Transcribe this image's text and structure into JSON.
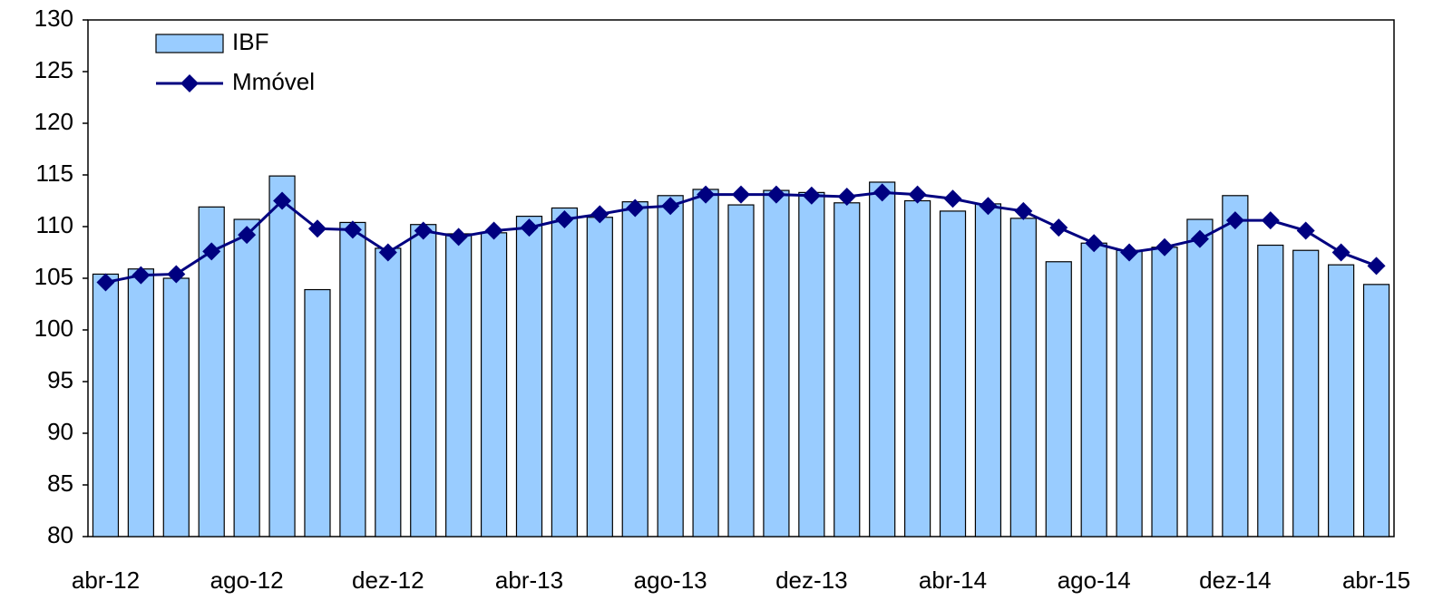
{
  "chart_data": {
    "type": "bar",
    "categories": [
      "abr-12",
      null,
      null,
      null,
      "ago-12",
      null,
      null,
      null,
      "dez-12",
      null,
      null,
      null,
      "abr-13",
      null,
      null,
      null,
      "ago-13",
      null,
      null,
      null,
      "dez-13",
      null,
      null,
      null,
      "abr-14",
      null,
      null,
      null,
      "ago-14",
      null,
      null,
      null,
      "dez-14",
      null,
      null,
      null,
      "abr-15"
    ],
    "series": [
      {
        "name": "IBF",
        "type": "bar",
        "color": "#99ccff",
        "values": [
          105.4,
          105.9,
          105.0,
          111.9,
          110.7,
          114.9,
          103.9,
          110.4,
          107.9,
          110.2,
          109.3,
          109.4,
          111.0,
          111.8,
          110.9,
          112.4,
          113.0,
          113.6,
          112.1,
          113.5,
          113.3,
          112.3,
          114.3,
          112.5,
          111.5,
          112.2,
          110.8,
          106.6,
          108.4,
          107.7,
          108.0,
          110.7,
          113.0,
          108.2,
          107.7,
          106.3,
          104.4
        ]
      },
      {
        "name": "Mmóvel",
        "type": "line",
        "color": "#000080",
        "values": [
          104.6,
          105.3,
          105.4,
          107.6,
          109.2,
          112.5,
          109.8,
          109.7,
          107.5,
          109.6,
          109.0,
          109.6,
          109.9,
          110.7,
          111.2,
          111.8,
          112.0,
          113.1,
          113.1,
          113.1,
          113.0,
          112.9,
          113.3,
          113.1,
          112.7,
          112.0,
          111.5,
          109.9,
          108.4,
          107.5,
          108.0,
          108.8,
          110.6,
          110.6,
          109.6,
          107.5,
          106.2
        ]
      }
    ],
    "ylim": [
      80,
      130
    ],
    "yticks": [
      80,
      85,
      90,
      95,
      100,
      105,
      110,
      115,
      120,
      125,
      130
    ],
    "grid": false,
    "legend": "top-left"
  }
}
